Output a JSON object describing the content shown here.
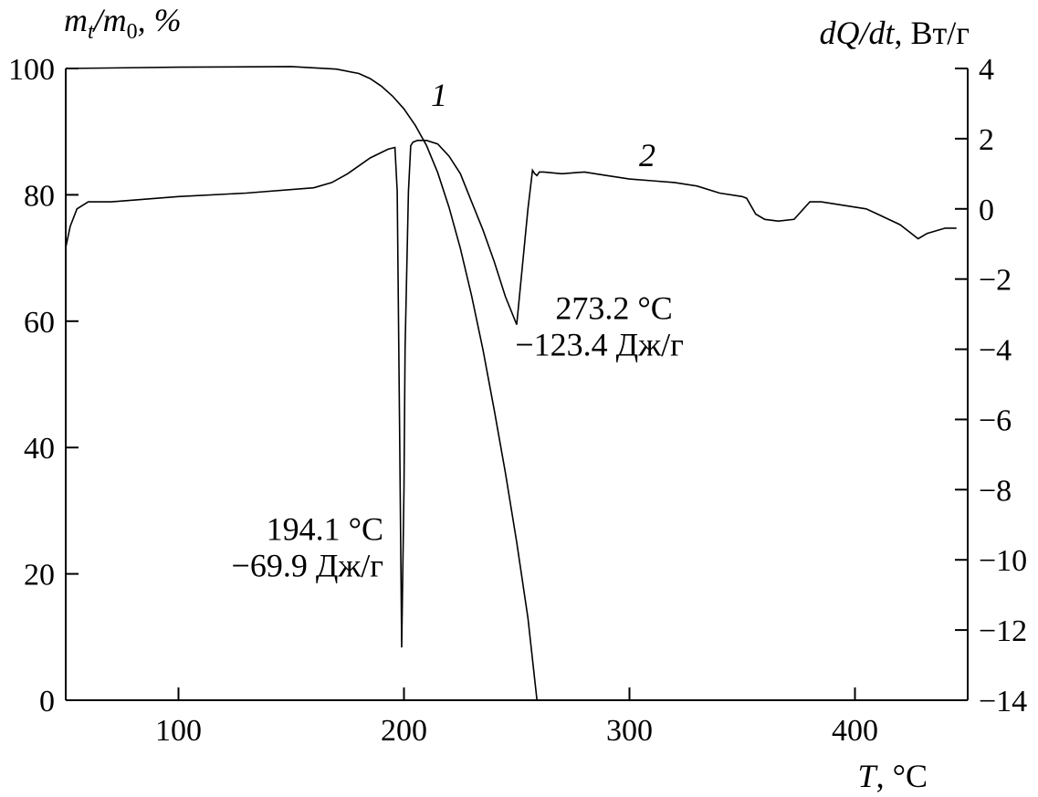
{
  "chart_data": {
    "type": "line",
    "title": "",
    "ylabel_left": {
      "main": "m",
      "sub_t": "t",
      "slash": "/m",
      "sub_0": "0",
      "tail": ", %"
    },
    "ylabel_right": {
      "italic": "dQ/dt",
      "tail": ", Вт/г"
    },
    "xlabel": {
      "italic": "T",
      "tail": ", °C"
    },
    "xlim": [
      50,
      450
    ],
    "ylim_left": [
      0,
      100
    ],
    "ylim_right": [
      -14,
      4
    ],
    "x_ticks": [
      100,
      200,
      300,
      400
    ],
    "y_left_ticks": [
      0,
      20,
      40,
      60,
      80,
      100
    ],
    "y_right_ticks": [
      -14,
      -12,
      -10,
      -8,
      -6,
      -4,
      -2,
      0,
      2,
      4
    ],
    "x_tick_labels": [
      "100",
      "200",
      "300",
      "400"
    ],
    "y_left_tick_labels": [
      "0",
      "20",
      "40",
      "60",
      "80",
      "100"
    ],
    "y_right_tick_labels": [
      "−14",
      "−12",
      "−10",
      "−8",
      "−6",
      "−4",
      "−2",
      "0",
      "2",
      "4"
    ],
    "grid": false,
    "series": [
      {
        "name": "1",
        "axis": "left",
        "x": [
          50,
          100,
          150,
          170,
          180,
          185,
          190,
          195,
          200,
          205,
          210,
          215,
          220,
          225,
          230,
          235,
          240,
          245,
          250,
          255,
          259
        ],
        "y": [
          100,
          100.2,
          100.3,
          99.9,
          99.2,
          98.4,
          97.2,
          95.6,
          93.6,
          91.0,
          87.8,
          83.5,
          78.0,
          71.5,
          64.0,
          55.5,
          46.0,
          36.0,
          25.0,
          13.0,
          0
        ]
      },
      {
        "name": "2",
        "axis": "right",
        "x": [
          50,
          52,
          55,
          60,
          70,
          100,
          130,
          160,
          168,
          175,
          185,
          193,
          196,
          197,
          198,
          199,
          200,
          200.5,
          202,
          203,
          204,
          206,
          210,
          215,
          220,
          225,
          230,
          235,
          240,
          245,
          250,
          255,
          257,
          258,
          259,
          260,
          262,
          270,
          280,
          290,
          300,
          310,
          320,
          330,
          340,
          350,
          352,
          356,
          360,
          366,
          373,
          380,
          385,
          395,
          405,
          410,
          420,
          428,
          432,
          440,
          445
        ],
        "y": [
          -1.1,
          -0.5,
          0.0,
          0.2,
          0.2,
          0.35,
          0.45,
          0.6,
          0.75,
          1.0,
          1.45,
          1.7,
          1.75,
          0.5,
          -6.0,
          -12.5,
          -8.0,
          -4.0,
          0.5,
          1.8,
          1.9,
          1.95,
          1.95,
          1.85,
          1.5,
          1.0,
          0.2,
          -0.6,
          -1.5,
          -2.5,
          -3.3,
          0.0,
          1.1,
          1.0,
          0.95,
          1.05,
          1.05,
          1.0,
          1.05,
          0.95,
          0.85,
          0.8,
          0.75,
          0.65,
          0.45,
          0.35,
          0.3,
          -0.15,
          -0.3,
          -0.35,
          -0.3,
          0.2,
          0.2,
          0.1,
          0.0,
          -0.15,
          -0.45,
          -0.85,
          -0.7,
          -0.55,
          -0.55
        ]
      }
    ],
    "annotations": [
      {
        "lines": [
          "194.1 °C",
          "−69.9 Дж/г"
        ],
        "peak_x": 199,
        "peak_y": -12.5,
        "axis": "right"
      },
      {
        "lines": [
          "273.2 °C",
          "−123.4 Дж/г"
        ],
        "peak_x": 255,
        "peak_y": -3.3,
        "axis": "right"
      }
    ]
  }
}
